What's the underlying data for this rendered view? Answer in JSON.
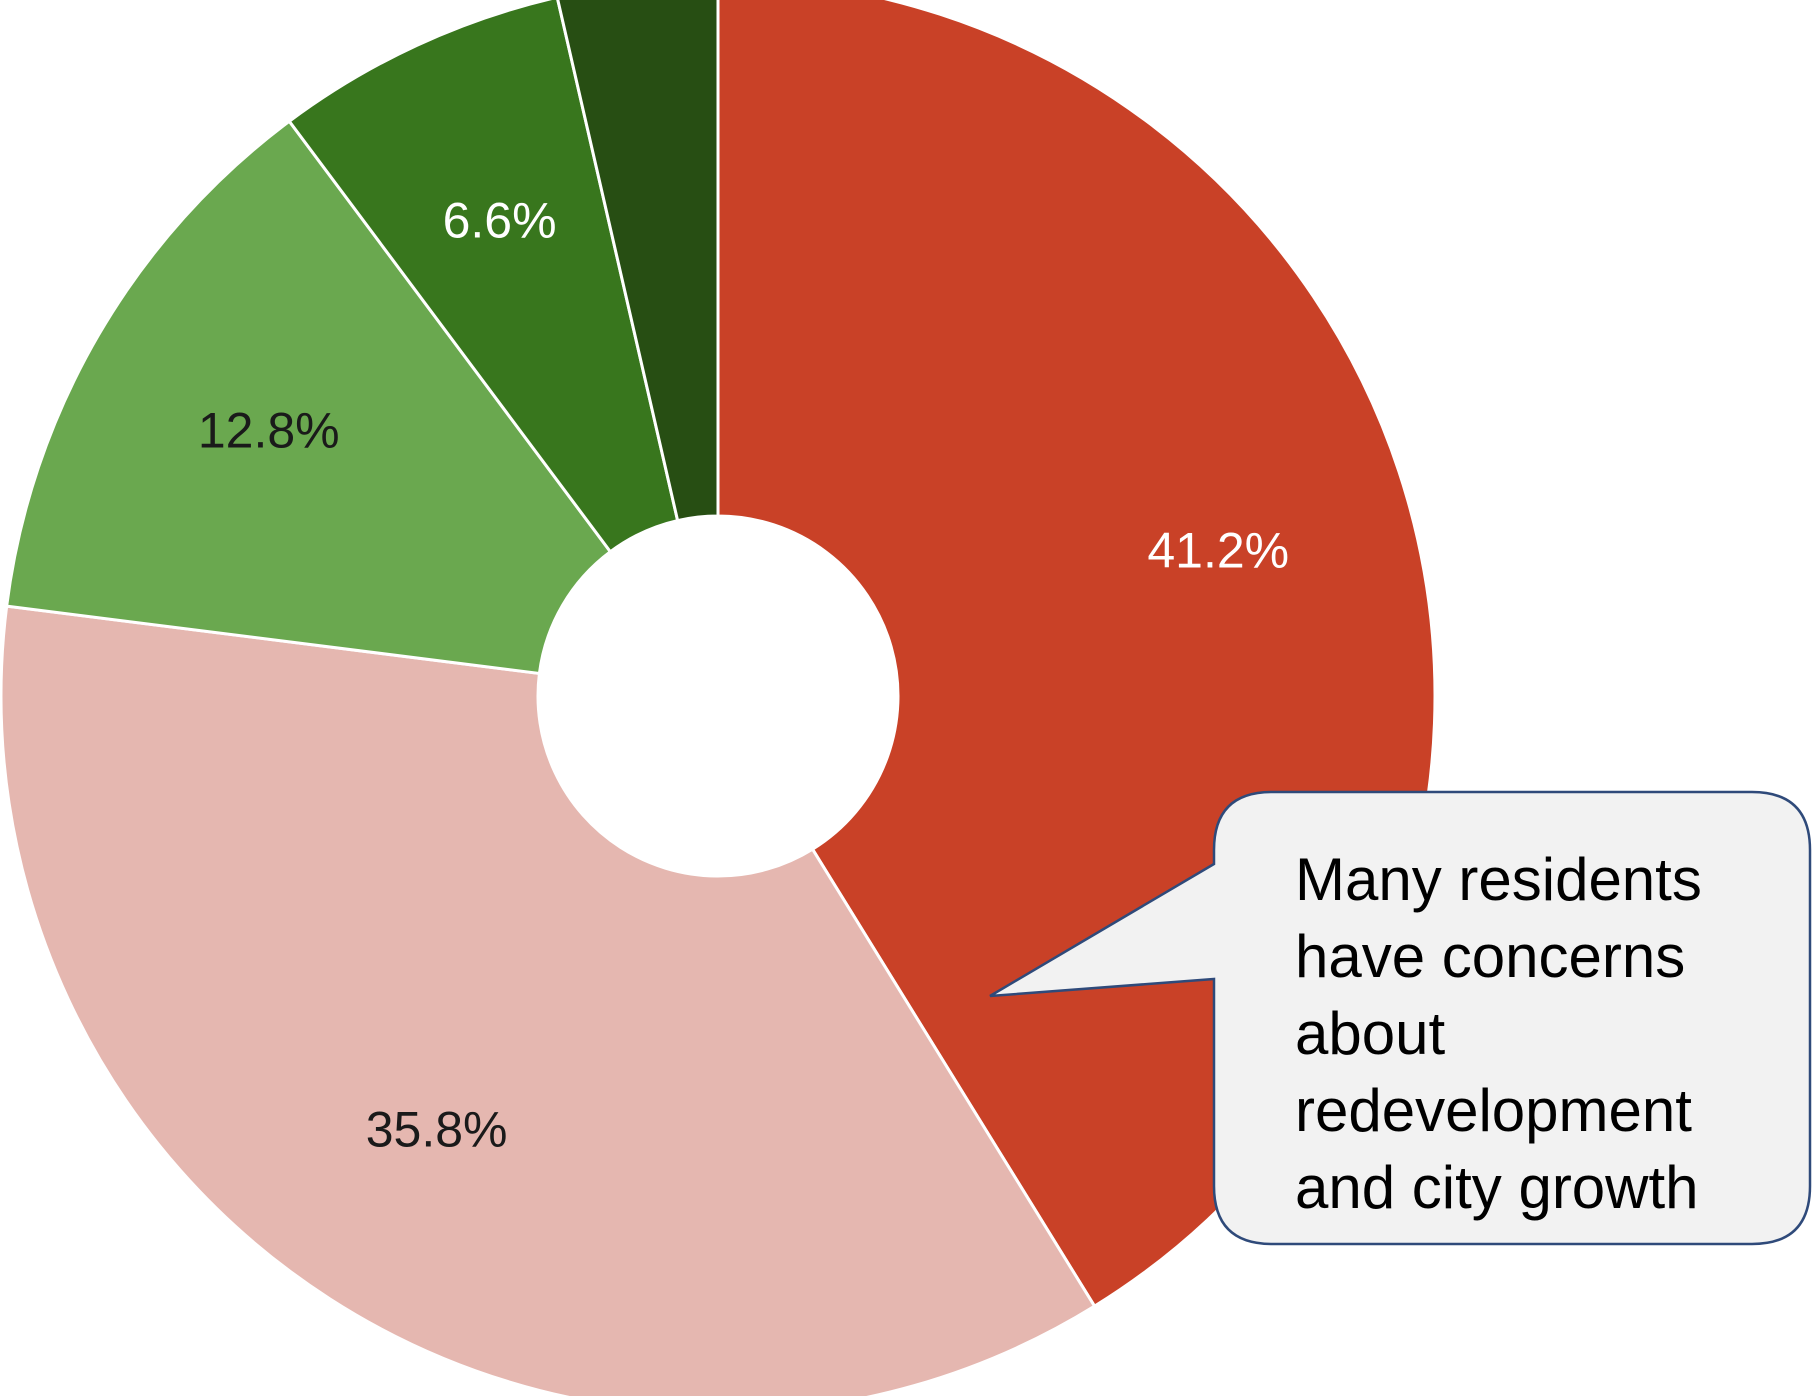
{
  "chart_data": {
    "type": "pie",
    "donut": true,
    "start": "top",
    "direction": "clockwise",
    "slices": [
      {
        "value": 41.2,
        "label": "41.2%",
        "color": "#c94127",
        "label_color": "#ffffff"
      },
      {
        "value": 35.8,
        "label": "35.8%",
        "color": "#e5b7b0",
        "label_color": "#1a1a1a"
      },
      {
        "value": 12.8,
        "label": "12.8%",
        "color": "#6aa84f",
        "label_color": "#1a1a1a"
      },
      {
        "value": 6.6,
        "label": "6.6%",
        "color": "#38761d",
        "label_color": "#ffffff"
      },
      {
        "value": 3.6,
        "label": "",
        "color": "#274e13",
        "label_color": "#ffffff"
      }
    ],
    "legend": "none"
  },
  "callout": {
    "lines": [
      "Many residents",
      "have concerns",
      "about",
      "redevelopment",
      "and city growth"
    ],
    "fill": "#f2f2f2",
    "border": "#2f4a7a",
    "points_to": "41.2%"
  }
}
